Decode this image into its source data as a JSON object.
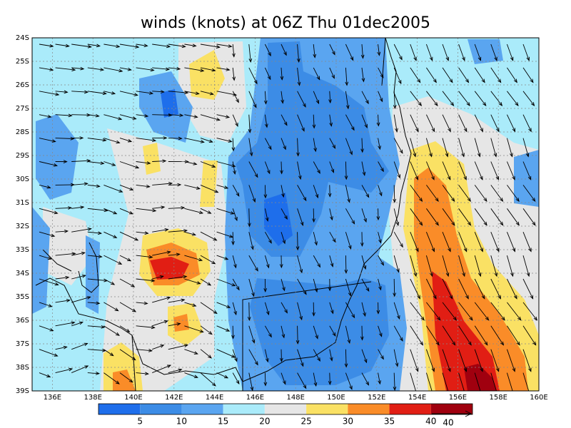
{
  "title": "winds (knots) at 06Z Thu 01dec2005",
  "lat_labels": [
    "24S",
    "25S",
    "26S",
    "27S",
    "28S",
    "29S",
    "30S",
    "31S",
    "32S",
    "33S",
    "34S",
    "35S",
    "36S",
    "37S",
    "38S",
    "39S"
  ],
  "lon_labels": [
    "136E",
    "138E",
    "140E",
    "142E",
    "144E",
    "146E",
    "148E",
    "150E",
    "152E",
    "154E",
    "156E",
    "158E",
    "160E"
  ],
  "colorbar": {
    "colors": [
      "#1e6eeb",
      "#3c8ce6",
      "#5aa5f0",
      "#aaebfa",
      "#e6e6e6",
      "#fae164",
      "#fa8c28",
      "#e11e14",
      "#a0000f"
    ],
    "labels": [
      5,
      10,
      15,
      20,
      25,
      30,
      35,
      40
    ]
  },
  "vector_reference": "40"
}
